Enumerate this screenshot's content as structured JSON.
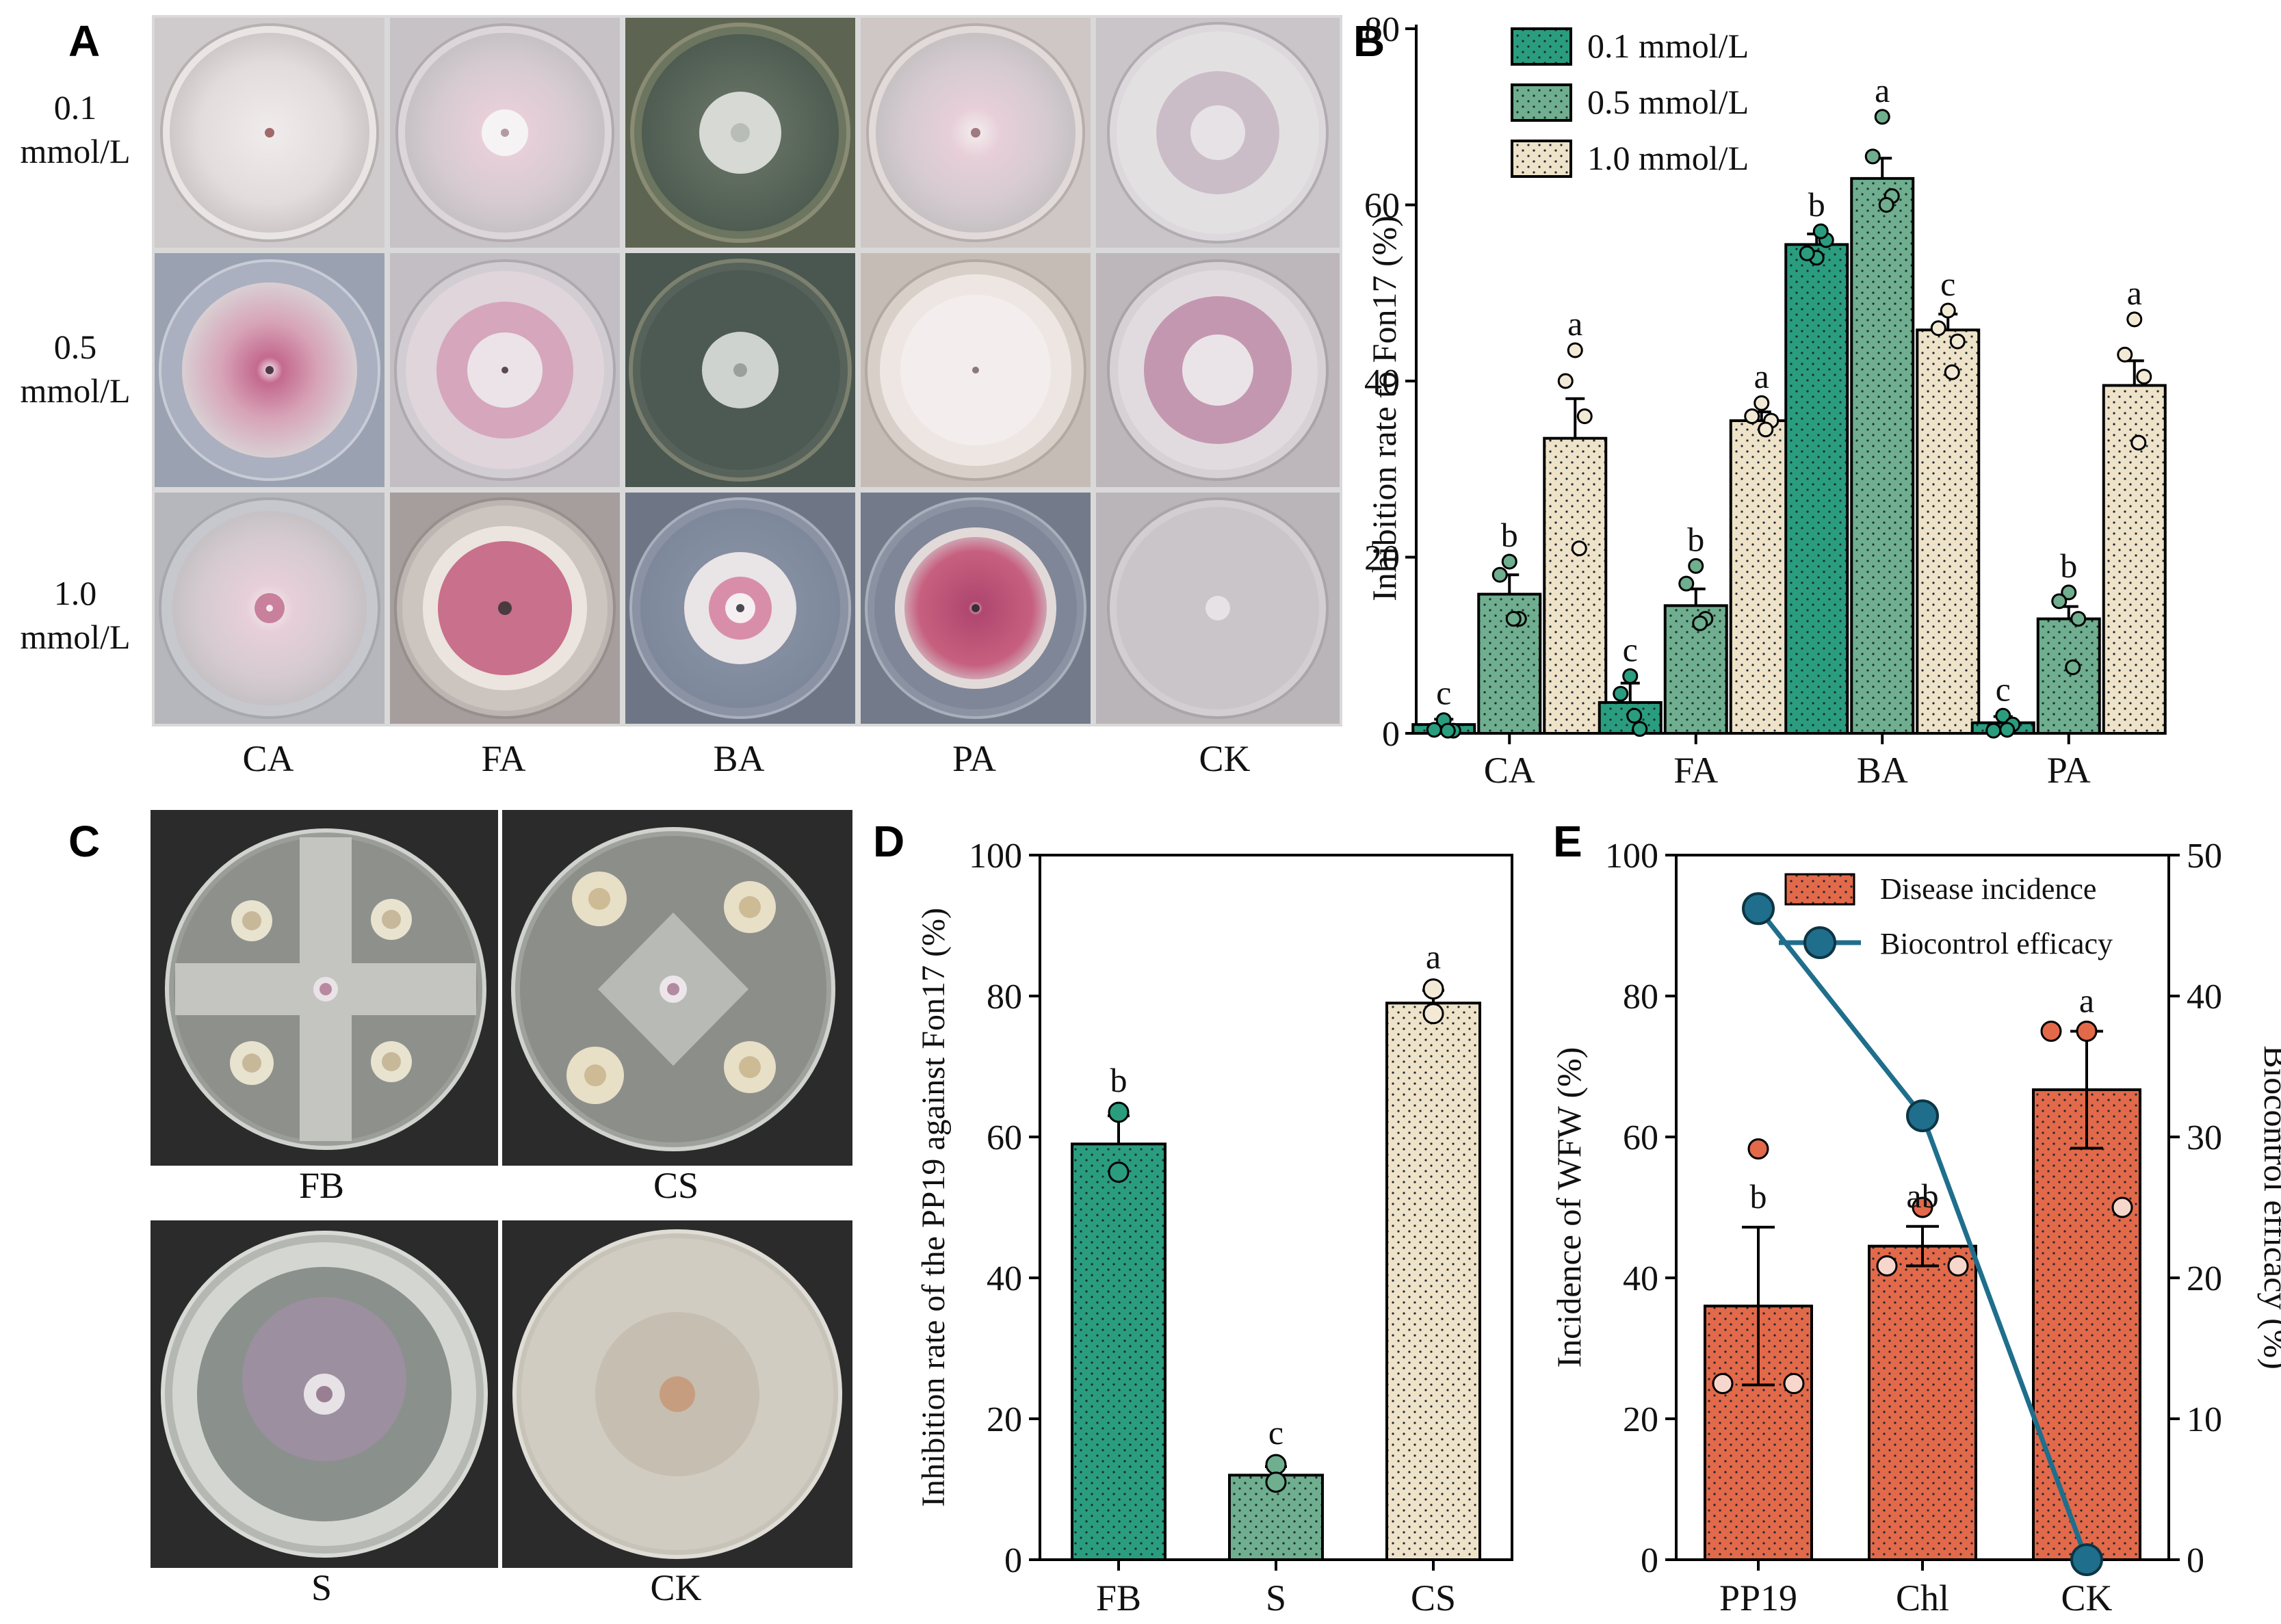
{
  "panel_labels": {
    "a": "A",
    "b": "B",
    "c": "C",
    "d": "D",
    "e": "E"
  },
  "panel_a": {
    "row_labels": [
      {
        "line1": "0.1",
        "line2": "mmol/L"
      },
      {
        "line1": "0.5",
        "line2": "mmol/L"
      },
      {
        "line1": "1.0",
        "line2": "mmol/L"
      }
    ],
    "column_labels": [
      "CA",
      "FA",
      "BA",
      "PA",
      "CK"
    ]
  },
  "panel_c": {
    "plate_labels": [
      "FB",
      "CS",
      "S",
      "CK"
    ]
  },
  "chart_data": [
    {
      "panel": "B",
      "type": "bar",
      "categories": [
        "CA",
        "FA",
        "BA",
        "PA"
      ],
      "ylabel": "Inhibition rate to Fon17 (%)",
      "ylim": [
        0,
        80
      ],
      "yticks": [
        0,
        20,
        40,
        60,
        80
      ],
      "legend": "top-left",
      "series": [
        {
          "name": "0.1 mmol/L",
          "color": "#2a9d7f",
          "values": [
            1,
            3.5,
            55.5,
            1.2
          ],
          "err": [
            0.6,
            2.2,
            1.2,
            0.7
          ],
          "letters": [
            "c",
            "c",
            "b",
            "c"
          ],
          "points": [
            [
              1.5,
              0.4,
              0.3,
              0.3
            ],
            [
              6.5,
              4.5,
              0.5,
              2
            ],
            [
              54,
              54.5,
              56,
              57
            ],
            [
              2,
              0.3,
              1,
              0.4
            ]
          ]
        },
        {
          "name": "0.5 mmol/L",
          "color": "#6fae8e",
          "values": [
            15.8,
            14.5,
            63,
            13
          ],
          "err": [
            2.2,
            1.9,
            2.3,
            1.4
          ],
          "letters": [
            "b",
            "b",
            "a",
            "b"
          ],
          "points": [
            [
              19.5,
              18,
              13,
              13
            ],
            [
              19,
              17,
              13,
              12.5
            ],
            [
              70,
              65.5,
              61,
              60
            ],
            [
              16,
              15,
              13,
              7.5
            ]
          ]
        },
        {
          "name": "1.0 mmol/L",
          "color": "#eee2c8",
          "values": [
            33.5,
            35.5,
            45.8,
            39.5
          ],
          "err": [
            4.5,
            1,
            1.8,
            2.8
          ],
          "letters": [
            "a",
            "a",
            "c",
            "a"
          ],
          "points": [
            [
              43.5,
              40,
              36,
              21
            ],
            [
              37.5,
              36,
              35.5,
              34.5
            ],
            [
              48,
              46,
              44.5,
              41
            ],
            [
              47,
              43,
              40.5,
              33
            ]
          ]
        }
      ]
    },
    {
      "panel": "D",
      "type": "bar",
      "categories": [
        "FB",
        "S",
        "CS"
      ],
      "ylabel": "Inhibition rate of the PP19 against Fon17 (%)",
      "ylim": [
        0,
        100
      ],
      "yticks": [
        0,
        20,
        40,
        60,
        80,
        100
      ],
      "colors": [
        "#2a9d7f",
        "#6fae8e",
        "#eee2c8"
      ],
      "values": [
        59,
        12,
        79
      ],
      "err": [
        4,
        1.2,
        1.8
      ],
      "letters": [
        "b",
        "c",
        "a"
      ],
      "points": [
        [
          63.5,
          55
        ],
        [
          13.5,
          11
        ],
        [
          81,
          77.5
        ]
      ]
    },
    {
      "panel": "E",
      "type": "bar",
      "categories": [
        "PP19",
        "Chl",
        "CK"
      ],
      "ylabel": "Incidence of WFW (%)",
      "y2label": "Biocontrol efficacy (%)",
      "ylim": [
        0,
        100
      ],
      "yticks": [
        0,
        20,
        40,
        60,
        80,
        100
      ],
      "y2lim": [
        0,
        50
      ],
      "y2ticks": [
        0,
        10,
        20,
        30,
        40,
        50
      ],
      "legend": "top-right",
      "series": [
        {
          "name": "Disease incidence",
          "color": "#e2694a",
          "values": [
            36,
            44.5,
            66.7
          ],
          "err": [
            11.2,
            2.8,
            8.3
          ],
          "letters": [
            "b",
            "ab",
            "a"
          ],
          "points": [
            [
              58.3,
              25,
              25
            ],
            [
              50,
              41.7,
              41.7
            ],
            [
              75,
              75,
              50
            ]
          ]
        },
        {
          "name": "Biocontrol efficacy",
          "color": "#1f6e8c",
          "axis": "right",
          "type": "line",
          "values": [
            46.2,
            31.5,
            0
          ]
        }
      ]
    }
  ]
}
